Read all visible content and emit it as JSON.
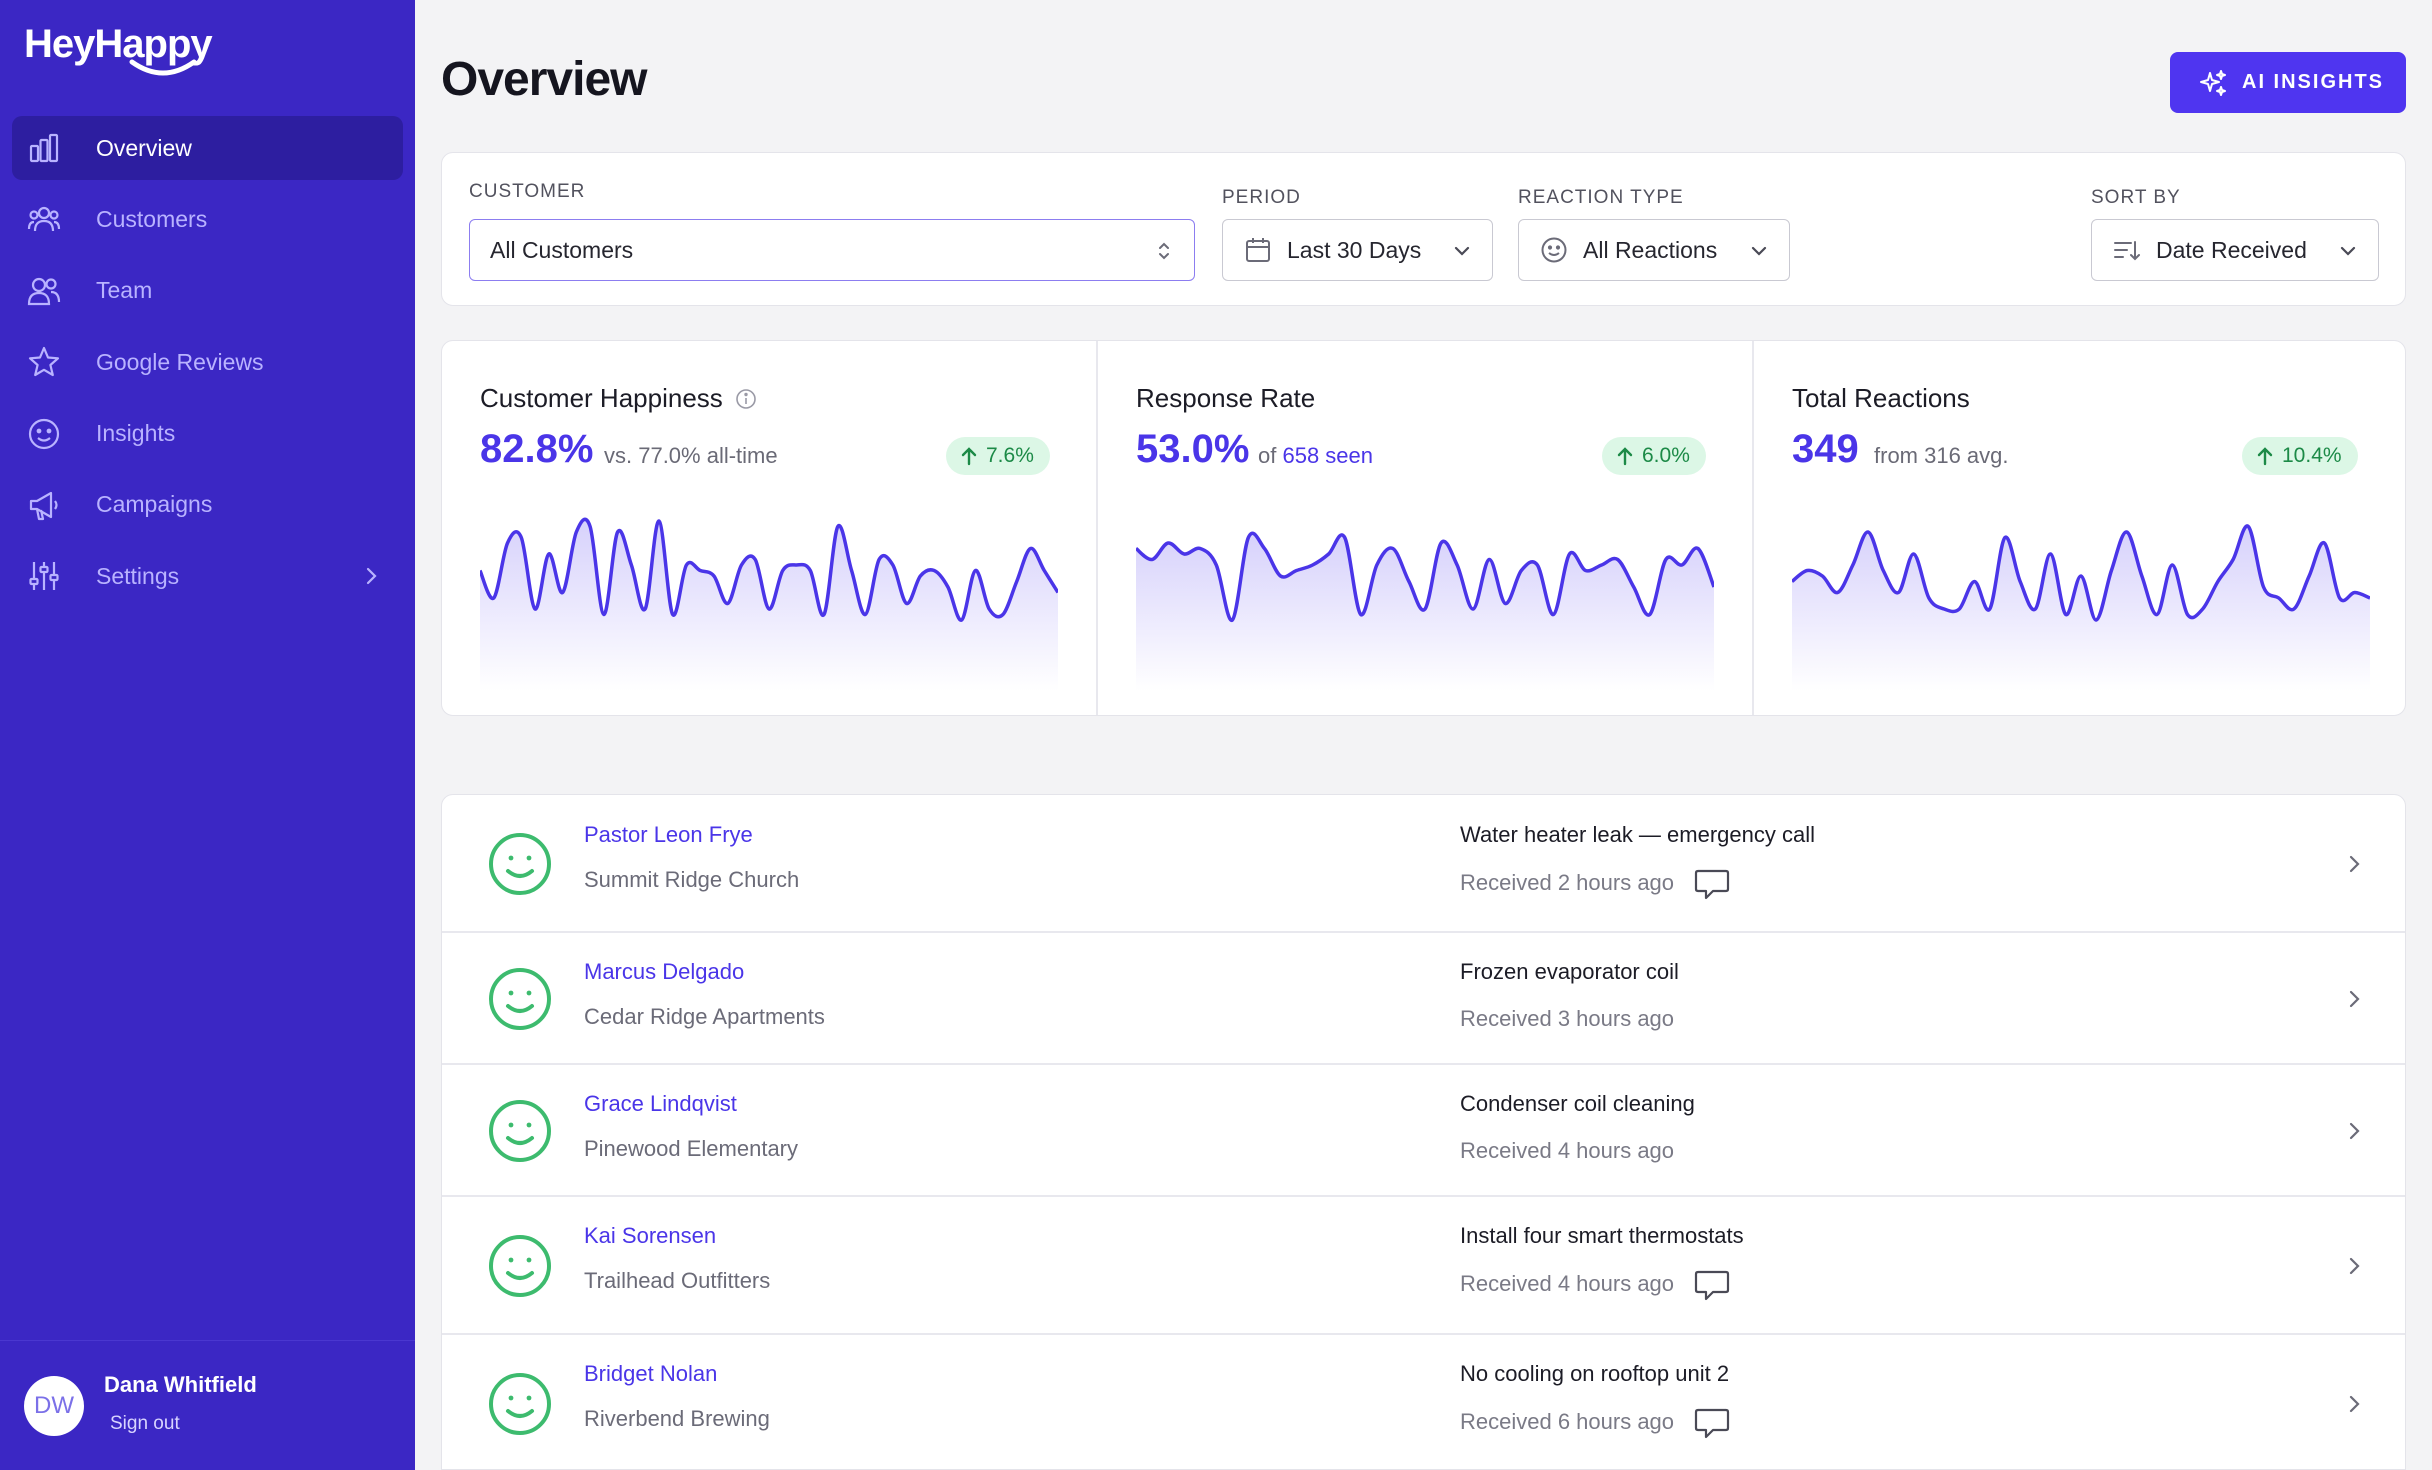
{
  "app": {
    "name": "HeyHappy"
  },
  "sidebar": {
    "items": [
      {
        "label": "Overview",
        "icon": "bar-chart-icon",
        "active": true
      },
      {
        "label": "Customers",
        "icon": "users-group-icon"
      },
      {
        "label": "Team",
        "icon": "team-icon"
      },
      {
        "label": "Google Reviews",
        "icon": "star-icon"
      },
      {
        "label": "Insights",
        "icon": "smiley-icon"
      },
      {
        "label": "Campaigns",
        "icon": "megaphone-icon"
      },
      {
        "label": "Settings",
        "icon": "sliders-icon",
        "has_children": true
      }
    ],
    "user": {
      "initials": "DW",
      "name": "Dana Whitfield",
      "sign_out": "Sign out"
    }
  },
  "header": {
    "title": "Overview",
    "ai_button": "AI INSIGHTS"
  },
  "filters": {
    "customer": {
      "label": "CUSTOMER",
      "value": "All Customers"
    },
    "period": {
      "label": "PERIOD",
      "value": "Last 30 Days"
    },
    "reaction_type": {
      "label": "REACTION TYPE",
      "value": "All Reactions"
    },
    "sort_by": {
      "label": "SORT BY",
      "value": "Date Received"
    }
  },
  "stats": [
    {
      "title": "Customer Happiness",
      "value": "82.8%",
      "sub_prefix": "vs. 77.0% all-time",
      "sub_link": "",
      "change": "7.6%",
      "trend": [
        0.55,
        0.3,
        0.8,
        0.85,
        0.2,
        0.7,
        0.35,
        0.9,
        0.95,
        0.15,
        0.9,
        0.6,
        0.2,
        1.0,
        0.15,
        0.6,
        0.55,
        0.5,
        0.25,
        0.6,
        0.65,
        0.2,
        0.55,
        0.6,
        0.55,
        0.15,
        0.95,
        0.55,
        0.15,
        0.65,
        0.6,
        0.25,
        0.5,
        0.55,
        0.4,
        0.1,
        0.55,
        0.2,
        0.15,
        0.45,
        0.75,
        0.55,
        0.35
      ]
    },
    {
      "title": "Response Rate",
      "value": "53.0%",
      "sub_prefix": "of ",
      "sub_link": "658 seen",
      "change": "6.0%",
      "trend": [
        0.75,
        0.65,
        0.8,
        0.7,
        0.75,
        0.6,
        0.1,
        0.85,
        0.75,
        0.5,
        0.55,
        0.6,
        0.7,
        0.85,
        0.15,
        0.6,
        0.75,
        0.45,
        0.2,
        0.8,
        0.6,
        0.2,
        0.65,
        0.25,
        0.55,
        0.6,
        0.15,
        0.7,
        0.55,
        0.6,
        0.65,
        0.4,
        0.15,
        0.65,
        0.6,
        0.75,
        0.4
      ]
    },
    {
      "title": "Total Reactions",
      "value": "349",
      "sub_prefix": "from 316 avg.",
      "sub_link": "",
      "change": "10.4%",
      "trend": [
        0.45,
        0.55,
        0.5,
        0.35,
        0.6,
        0.9,
        0.55,
        0.35,
        0.7,
        0.3,
        0.2,
        0.2,
        0.45,
        0.2,
        0.85,
        0.45,
        0.2,
        0.7,
        0.15,
        0.5,
        0.1,
        0.55,
        0.9,
        0.5,
        0.15,
        0.6,
        0.15,
        0.2,
        0.45,
        0.65,
        0.95,
        0.4,
        0.3,
        0.2,
        0.5,
        0.8,
        0.3,
        0.35,
        0.3
      ]
    }
  ],
  "reactions": [
    {
      "name": "Pastor Leon Frye",
      "org": "Summit Ridge Church",
      "job": "Water heater leak — emergency call",
      "received": "Received 2 hours ago",
      "has_comment": true
    },
    {
      "name": "Marcus Delgado",
      "org": "Cedar Ridge Apartments",
      "job": "Frozen evaporator coil",
      "received": "Received 3 hours ago",
      "has_comment": false
    },
    {
      "name": "Grace Lindqvist",
      "org": "Pinewood Elementary",
      "job": "Condenser coil cleaning",
      "received": "Received 4 hours ago",
      "has_comment": false
    },
    {
      "name": "Kai Sorensen",
      "org": "Trailhead Outfitters",
      "job": "Install four smart thermostats",
      "received": "Received 4 hours ago",
      "has_comment": true
    },
    {
      "name": "Bridget Nolan",
      "org": "Riverbend Brewing",
      "job": "No cooling on rooftop unit 2",
      "received": "Received 6 hours ago",
      "has_comment": true
    }
  ],
  "colors": {
    "sidebar": "#3b27c4",
    "accent": "#4a35e8",
    "positive": "#1c8a47",
    "happy_face": "#3dbb6e"
  }
}
